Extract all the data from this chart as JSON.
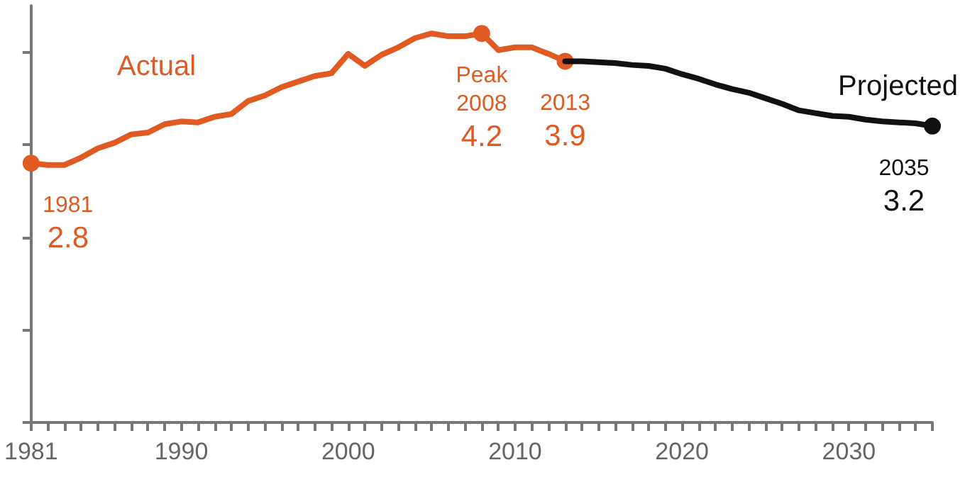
{
  "chart_data": {
    "type": "line",
    "xlim": [
      1981,
      2035
    ],
    "ylim": [
      0,
      4.5
    ],
    "xticks": [
      1981,
      {
        "value": 1982,
        "label": null
      },
      {
        "value": 1983,
        "label": null
      },
      {
        "value": 1984,
        "label": null
      },
      {
        "value": 1985,
        "label": null
      },
      {
        "value": 1986,
        "label": null
      },
      {
        "value": 1987,
        "label": null
      },
      {
        "value": 1988,
        "label": null
      },
      {
        "value": 1989,
        "label": null
      },
      1990,
      {
        "value": 1991,
        "label": null
      },
      {
        "value": 1992,
        "label": null
      },
      {
        "value": 1993,
        "label": null
      },
      {
        "value": 1994,
        "label": null
      },
      {
        "value": 1995,
        "label": null
      },
      {
        "value": 1996,
        "label": null
      },
      {
        "value": 1997,
        "label": null
      },
      {
        "value": 1998,
        "label": null
      },
      {
        "value": 1999,
        "label": null
      },
      2000,
      {
        "value": 2001,
        "label": null
      },
      {
        "value": 2002,
        "label": null
      },
      {
        "value": 2003,
        "label": null
      },
      {
        "value": 2004,
        "label": null
      },
      {
        "value": 2005,
        "label": null
      },
      {
        "value": 2006,
        "label": null
      },
      {
        "value": 2007,
        "label": null
      },
      {
        "value": 2008,
        "label": null
      },
      {
        "value": 2009,
        "label": null
      },
      2010,
      {
        "value": 2011,
        "label": null
      },
      {
        "value": 2012,
        "label": null
      },
      {
        "value": 2013,
        "label": null
      },
      {
        "value": 2014,
        "label": null
      },
      {
        "value": 2015,
        "label": null
      },
      {
        "value": 2016,
        "label": null
      },
      {
        "value": 2017,
        "label": null
      },
      {
        "value": 2018,
        "label": null
      },
      {
        "value": 2019,
        "label": null
      },
      2020,
      {
        "value": 2021,
        "label": null
      },
      {
        "value": 2022,
        "label": null
      },
      {
        "value": 2023,
        "label": null
      },
      {
        "value": 2024,
        "label": null
      },
      {
        "value": 2025,
        "label": null
      },
      {
        "value": 2026,
        "label": null
      },
      {
        "value": 2027,
        "label": null
      },
      {
        "value": 2028,
        "label": null
      },
      {
        "value": 2029,
        "label": null
      },
      2030,
      {
        "value": 2031,
        "label": null
      },
      {
        "value": 2032,
        "label": null
      },
      {
        "value": 2033,
        "label": null
      },
      {
        "value": 2034,
        "label": null
      },
      {
        "value": 2035,
        "label": null
      }
    ],
    "yticks": [
      {
        "value": 0,
        "label": null
      },
      {
        "value": 1,
        "label": null
      },
      {
        "value": 2,
        "label": null
      },
      {
        "value": 3,
        "label": null
      },
      {
        "value": 4,
        "label": null
      }
    ],
    "tick_labels": "x",
    "grid": false,
    "legend": false,
    "line_style": "solid",
    "series": [
      {
        "name": "Actual",
        "color": "#e05a22",
        "x": [
          1981,
          1982,
          1983,
          1984,
          1985,
          1986,
          1987,
          1988,
          1989,
          1990,
          1991,
          1992,
          1993,
          1994,
          1995,
          1996,
          1997,
          1998,
          1999,
          2000,
          2001,
          2002,
          2003,
          2004,
          2005,
          2006,
          2007,
          2008,
          2009,
          2010,
          2011,
          2012,
          2013
        ],
        "values": [
          2.8,
          2.78,
          2.78,
          2.86,
          2.96,
          3.02,
          3.11,
          3.13,
          3.22,
          3.25,
          3.24,
          3.3,
          3.33,
          3.47,
          3.53,
          3.62,
          3.68,
          3.74,
          3.77,
          3.98,
          3.85,
          3.97,
          4.05,
          4.15,
          4.2,
          4.17,
          4.17,
          4.2,
          4.02,
          4.05,
          4.05,
          3.98,
          3.9
        ],
        "value_labels": [
          "2.8",
          null,
          null,
          null,
          null,
          null,
          null,
          null,
          null,
          null,
          null,
          null,
          null,
          null,
          null,
          null,
          null,
          null,
          null,
          null,
          null,
          null,
          null,
          null,
          null,
          null,
          null,
          "4.2",
          null,
          null,
          null,
          null,
          "3.9"
        ]
      },
      {
        "name": "Projected",
        "color": "#111111",
        "x": [
          2013,
          2014,
          2015,
          2016,
          2017,
          2018,
          2019,
          2020,
          2021,
          2022,
          2023,
          2024,
          2025,
          2026,
          2027,
          2028,
          2029,
          2030,
          2031,
          2032,
          2033,
          2034,
          2035
        ],
        "values": [
          3.9,
          3.9,
          3.89,
          3.88,
          3.86,
          3.85,
          3.82,
          3.76,
          3.71,
          3.65,
          3.6,
          3.56,
          3.5,
          3.44,
          3.37,
          3.34,
          3.31,
          3.3,
          3.27,
          3.25,
          3.24,
          3.23,
          3.2
        ],
        "value_labels": [
          null,
          null,
          null,
          null,
          null,
          null,
          null,
          null,
          null,
          null,
          null,
          null,
          null,
          null,
          null,
          null,
          null,
          null,
          null,
          null,
          null,
          null,
          "3.2"
        ]
      }
    ],
    "annotations": [
      {
        "text": "1981",
        "x": 1981,
        "y": 2.8
      },
      {
        "text": "Peak",
        "x": 2008,
        "y": 4.2
      },
      {
        "text": "2008",
        "x": 2008,
        "y": 4.2
      },
      {
        "text": "2013",
        "x": 2013,
        "y": 3.9
      },
      {
        "text": "2035",
        "x": 2035,
        "y": 3.2
      }
    ]
  }
}
